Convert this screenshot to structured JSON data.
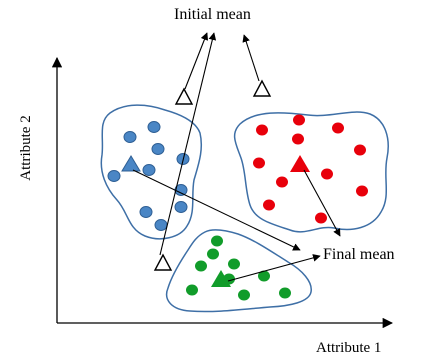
{
  "labels": {
    "initial_mean": "Initial mean",
    "final_mean": "Final mean",
    "x_axis": "Attribute 1",
    "y_axis": "Attribute 2"
  },
  "colors": {
    "cluster_outline": "#3e6fa6",
    "blue": "#4a86c5",
    "blue_stroke": "#2f5f94",
    "red": "#e8000b",
    "green": "#119c2a",
    "axis": "#000000",
    "arrow": "#000000"
  },
  "clusters": [
    {
      "id": "blue",
      "point_count": 11
    },
    {
      "id": "red",
      "point_count": 11
    },
    {
      "id": "green",
      "point_count": 10
    }
  ]
}
